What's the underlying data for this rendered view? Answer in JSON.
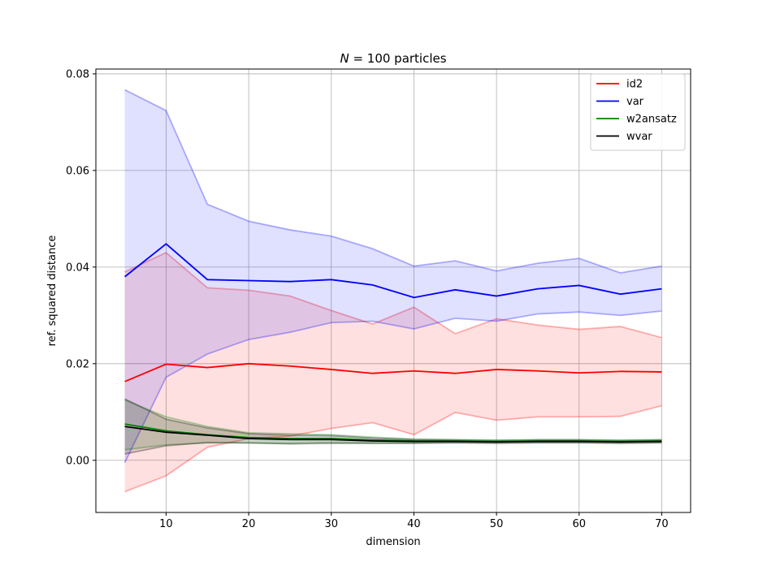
{
  "chart_data": {
    "type": "line",
    "title": "N = 100 particles",
    "title_parts": {
      "var": "N",
      "rest": " = 100 particles"
    },
    "xlabel": "dimension",
    "ylabel": "ref. squared distance",
    "xlim": [
      1.5,
      73.5
    ],
    "ylim": [
      -0.0108,
      0.081
    ],
    "x_ticks": [
      10,
      20,
      30,
      40,
      50,
      60,
      70
    ],
    "x_tick_labels": [
      "10",
      "20",
      "30",
      "40",
      "50",
      "60",
      "70"
    ],
    "y_ticks": [
      0.0,
      0.02,
      0.04,
      0.06,
      0.08
    ],
    "y_tick_labels": [
      "0.00",
      "0.02",
      "0.04",
      "0.06",
      "0.08"
    ],
    "grid": true,
    "legend_position": "top-right",
    "x": [
      5,
      10,
      15,
      20,
      25,
      30,
      35,
      40,
      45,
      50,
      55,
      60,
      65,
      70
    ],
    "series": [
      {
        "name": "id2",
        "color": "#ff0000",
        "values": [
          0.0163,
          0.0199,
          0.0192,
          0.02,
          0.0195,
          0.0188,
          0.018,
          0.0185,
          0.018,
          0.0188,
          0.0185,
          0.0181,
          0.0184,
          0.0183
        ],
        "upper": [
          0.039,
          0.043,
          0.0357,
          0.0352,
          0.034,
          0.031,
          0.0282,
          0.0317,
          0.0262,
          0.0293,
          0.028,
          0.0271,
          0.0277,
          0.0254
        ],
        "lower": [
          -0.0065,
          -0.0032,
          0.0027,
          0.0045,
          0.005,
          0.0066,
          0.0078,
          0.0053,
          0.0099,
          0.0083,
          0.009,
          0.009,
          0.0091,
          0.0113
        ]
      },
      {
        "name": "var",
        "color": "#0000ff",
        "values": [
          0.038,
          0.0448,
          0.0374,
          0.0372,
          0.037,
          0.0374,
          0.0363,
          0.0337,
          0.0353,
          0.034,
          0.0355,
          0.0362,
          0.0344,
          0.0355
        ],
        "upper": [
          0.0767,
          0.0724,
          0.053,
          0.0495,
          0.0477,
          0.0464,
          0.0438,
          0.0402,
          0.0413,
          0.0392,
          0.0408,
          0.0418,
          0.0388,
          0.0402
        ],
        "lower": [
          -0.0005,
          0.0172,
          0.022,
          0.025,
          0.0265,
          0.0285,
          0.0288,
          0.0272,
          0.0294,
          0.0288,
          0.0303,
          0.0307,
          0.03,
          0.0309
        ]
      },
      {
        "name": "w2ansatz",
        "color": "#008000",
        "values": [
          0.0075,
          0.0061,
          0.0053,
          0.0047,
          0.0045,
          0.0045,
          0.0042,
          0.004,
          0.004,
          0.0039,
          0.004,
          0.004,
          0.0039,
          0.004
        ],
        "upper": [
          0.0125,
          0.009,
          0.007,
          0.0057,
          0.0055,
          0.0053,
          0.0048,
          0.0044,
          0.0043,
          0.0042,
          0.0043,
          0.0043,
          0.0042,
          0.0043
        ],
        "lower": [
          0.0022,
          0.0032,
          0.0036,
          0.0036,
          0.0035,
          0.0037,
          0.0036,
          0.0036,
          0.0037,
          0.0036,
          0.0037,
          0.0037,
          0.0036,
          0.0037
        ]
      },
      {
        "name": "wvar",
        "color": "#000000",
        "values": [
          0.007,
          0.0058,
          0.0052,
          0.0045,
          0.0043,
          0.0043,
          0.004,
          0.0039,
          0.0039,
          0.0038,
          0.0039,
          0.0039,
          0.0038,
          0.0039
        ],
        "upper": [
          0.0127,
          0.0085,
          0.0067,
          0.0055,
          0.0052,
          0.0051,
          0.0046,
          0.0043,
          0.0042,
          0.0041,
          0.0042,
          0.0042,
          0.0041,
          0.0042
        ],
        "lower": [
          0.0013,
          0.003,
          0.0037,
          0.0036,
          0.0034,
          0.0035,
          0.0035,
          0.0035,
          0.0036,
          0.0035,
          0.0036,
          0.0036,
          0.0035,
          0.0036
        ]
      }
    ]
  }
}
